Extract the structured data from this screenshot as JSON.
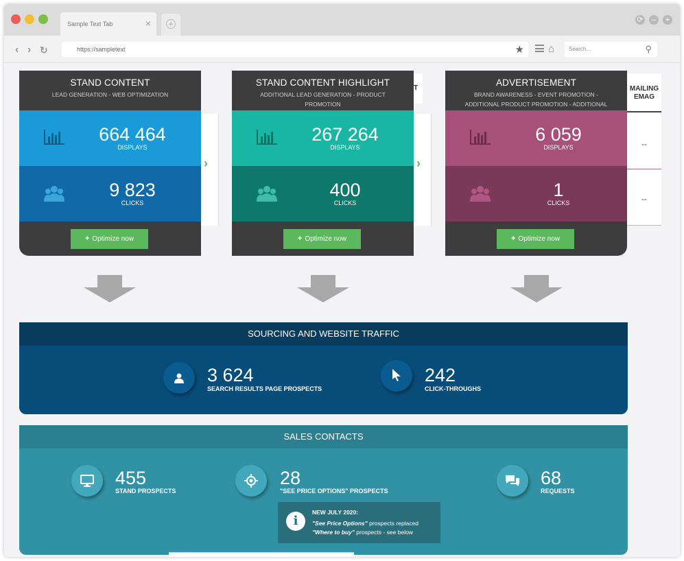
{
  "browser": {
    "tab_title": "Sample Text Tab",
    "tab_close": "×",
    "new_tab": "+",
    "url": "https://sampletext",
    "search_placeholder": "Search..."
  },
  "cards": [
    {
      "title": "STAND CONTENT",
      "subtitle": "LEAD GENERATION - WEB OPTIMIZATION",
      "displays": "664 464",
      "displays_label": "DISPLAYS",
      "clicks": "9 823",
      "clicks_label": "CLICKS",
      "button": "Optimize now"
    },
    {
      "title": "STAND CONTENT HIGHLIGHT",
      "subtitle": "ADDITIONAL LEAD GENERATION - PRODUCT PROMOTION",
      "displays": "267 264",
      "displays_label": "DISPLAYS",
      "clicks": "400",
      "clicks_label": "CLICKS",
      "button": "Optimize now"
    },
    {
      "title": "ADVERTISEMENT",
      "subtitle": "BRAND AWARENESS - EVENT PROMOTION - ADDITIONAL PRODUCT PROMOTION - ADDITIONAL LEAD GENERATION",
      "displays": "6 059",
      "displays_label": "DISPLAYS",
      "clicks": "1",
      "clicks_label": "CLICKS",
      "button": "Optimize now"
    }
  ],
  "side_panel": {
    "partial_header": "T",
    "mailing_title_1": "MAILING",
    "mailing_title_2": "EMAG",
    "dash_1": "--",
    "dash_2": "--"
  },
  "traffic": {
    "title": "SOURCING AND WEBSITE TRAFFIC",
    "stats": [
      {
        "value": "3 624",
        "label": "SEARCH RESULTS PAGE PROSPECTS"
      },
      {
        "value": "242",
        "label": "CLICK-THROUGHS"
      }
    ]
  },
  "sales": {
    "title": "SALES CONTACTS",
    "stats": [
      {
        "value": "455",
        "label": "STAND PROSPECTS"
      },
      {
        "value": "28",
        "label": "\"SEE PRICE OPTIONS\" PROSPECTS"
      },
      {
        "value": "68",
        "label": "REQUESTS"
      }
    ],
    "notice": {
      "heading": "NEW JULY 2020:",
      "line1_em": "\"See Price Options\"",
      "line1_rest": " prospects replaced",
      "line2_em": "\"Where to buy\"",
      "line2_rest": " prospects - see below"
    }
  },
  "colors": {
    "stand_content": "#1a9bd7",
    "stand_highlight": "#19b7a3",
    "advertisement": "#a7507a",
    "traffic_panel": "#084d79",
    "sales_panel": "#3292a5",
    "optimize_button": "#5cb85c"
  }
}
